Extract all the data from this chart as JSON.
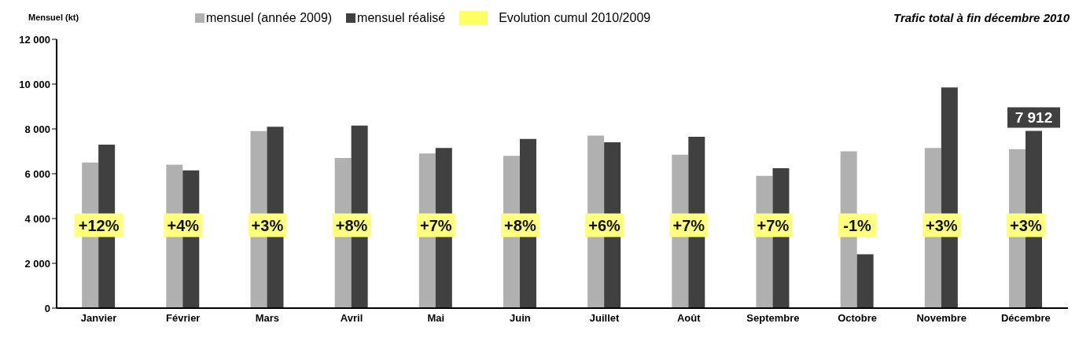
{
  "chart_data": {
    "type": "bar",
    "title": "Trafic total à fin décembre 2010",
    "ylabel": "Mensuel (kt)",
    "categories": [
      "Janvier",
      "Février",
      "Mars",
      "Avril",
      "Mai",
      "Juin",
      "Juillet",
      "Août",
      "Septembre",
      "Octobre",
      "Novembre",
      "Décembre"
    ],
    "series": [
      {
        "name": "mensuel (année 2009)",
        "color": "#b0b0b0",
        "values": [
          6500,
          6400,
          7900,
          6700,
          6900,
          6800,
          7700,
          6850,
          5900,
          7000,
          7150,
          7100
        ]
      },
      {
        "name": "mensuel réalisé",
        "color": "#404040",
        "values": [
          7300,
          6150,
          8100,
          8150,
          7150,
          7550,
          7400,
          7650,
          6250,
          2400,
          9850,
          7912
        ],
        "value_labels": [
          null,
          null,
          null,
          null,
          null,
          null,
          null,
          null,
          null,
          null,
          null,
          "7 912"
        ]
      }
    ],
    "ylim": [
      0,
      12000
    ],
    "yticks": [
      {
        "value": 0,
        "label": "0"
      },
      {
        "value": 2000,
        "label": "2 000"
      },
      {
        "value": 4000,
        "label": "4 000"
      },
      {
        "value": 6000,
        "label": "6 000"
      },
      {
        "value": 8000,
        "label": "8 000"
      },
      {
        "value": 10000,
        "label": "10 000"
      },
      {
        "value": 12000,
        "label": "12 000"
      }
    ],
    "grid": false,
    "legend": "top",
    "annotations": [
      "Evolution cumul 2010/2009",
      {
        "text": "+12%",
        "x": "Janvier",
        "y": 3700
      },
      {
        "text": "+4%",
        "x": "Février",
        "y": 3700
      },
      {
        "text": "+3%",
        "x": "Mars",
        "y": 3700
      },
      {
        "text": "+8%",
        "x": "Avril",
        "y": 3700
      },
      {
        "text": "+7%",
        "x": "Mai",
        "y": 3700
      },
      {
        "text": "+8%",
        "x": "Juin",
        "y": 3700
      },
      {
        "text": "+6%",
        "x": "Juillet",
        "y": 3700
      },
      {
        "text": "+7%",
        "x": "Août",
        "y": 3700
      },
      {
        "text": "+7%",
        "x": "Septembre",
        "y": 3700
      },
      {
        "text": "-1%",
        "x": "Octobre",
        "y": 3700
      },
      {
        "text": "+3%",
        "x": "Novembre",
        "y": 3700
      },
      {
        "text": "+3%",
        "x": "Décembre",
        "y": 3700
      }
    ]
  }
}
